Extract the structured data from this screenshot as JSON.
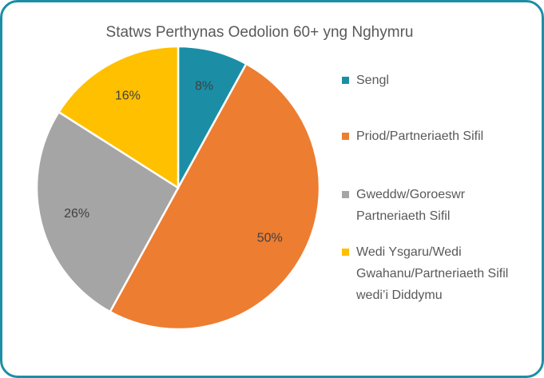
{
  "chart_data": {
    "type": "pie",
    "title": "Statws Perthynas Oedolion 60+ yng Nghymru",
    "categories": [
      "Sengl",
      "Priod/Partneriaeth Sifil",
      "Gweddw/Goroeswr Partneriaeth Sifil",
      "Wedi Ysgaru/Wedi Gwahanu/Partneriaeth Sifil wedi’i Diddymu"
    ],
    "values": [
      8,
      50,
      26,
      16
    ],
    "value_labels": [
      "8%",
      "50%",
      "26%",
      "16%"
    ],
    "colors": [
      "#1b8ea6",
      "#ed7d31",
      "#a5a5a5",
      "#ffc000"
    ],
    "legend": "right"
  }
}
